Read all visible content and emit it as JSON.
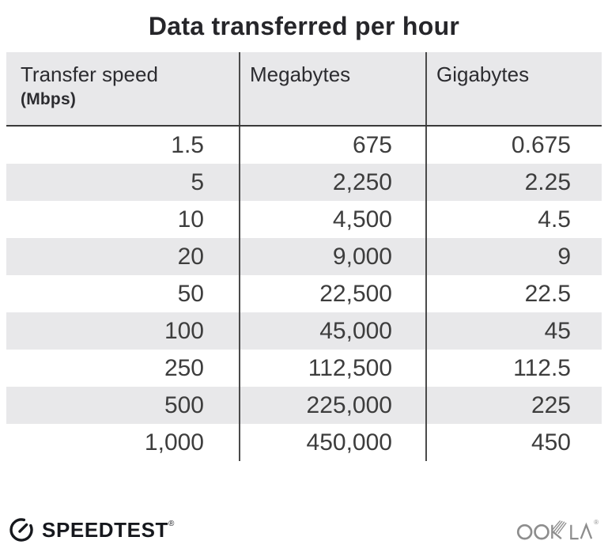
{
  "title": "Data transferred per hour",
  "table": {
    "columns": [
      {
        "label": "Transfer speed",
        "sublabel": "(Mbps)"
      },
      {
        "label": "Megabytes"
      },
      {
        "label": "Gigabytes"
      }
    ],
    "rows": [
      {
        "speed": "1.5",
        "megabytes": "675",
        "gigabytes": "0.675"
      },
      {
        "speed": "5",
        "megabytes": "2,250",
        "gigabytes": "2.25"
      },
      {
        "speed": "10",
        "megabytes": "4,500",
        "gigabytes": "4.5"
      },
      {
        "speed": "20",
        "megabytes": "9,000",
        "gigabytes": "9"
      },
      {
        "speed": "50",
        "megabytes": "22,500",
        "gigabytes": "22.5"
      },
      {
        "speed": "100",
        "megabytes": "45,000",
        "gigabytes": "45"
      },
      {
        "speed": "250",
        "megabytes": "112,500",
        "gigabytes": "112.5"
      },
      {
        "speed": "500",
        "megabytes": "225,000",
        "gigabytes": "225"
      },
      {
        "speed": "1,000",
        "megabytes": "450,000",
        "gigabytes": "450"
      }
    ]
  },
  "footer": {
    "speedtest_label": "SPEEDTEST",
    "speedtest_trademark": "®",
    "ookla_label": "OOKLA",
    "ookla_trademark": "®"
  },
  "icons": {
    "speedtest_gauge": "gauge-icon",
    "ookla_wordmark": "ookla-wordmark"
  },
  "colors": {
    "stripe_and_header_bg": "#e8e8ea",
    "column_divider": "#4a4a4a",
    "header_bottom_border": "#3a3a3a",
    "title_text": "#26262a",
    "header_text": "#2c2c30",
    "body_text": "#3d3d3d",
    "speedtest_black": "#16181d",
    "ookla_gray": "#8d8d8d"
  },
  "chart_data": {
    "type": "table",
    "title": "Data transferred per hour",
    "columns": [
      "Transfer speed (Mbps)",
      "Megabytes",
      "Gigabytes"
    ],
    "rows": [
      [
        1.5,
        675,
        0.675
      ],
      [
        5,
        2250,
        2.25
      ],
      [
        10,
        4500,
        4.5
      ],
      [
        20,
        9000,
        9
      ],
      [
        50,
        22500,
        22.5
      ],
      [
        100,
        45000,
        45
      ],
      [
        250,
        112500,
        112.5
      ],
      [
        500,
        225000,
        225
      ],
      [
        1000,
        450000,
        450
      ]
    ],
    "layout_hints": {
      "striped_rows": true,
      "stripe_start": "second data row",
      "numbers_right_aligned": true,
      "column_dividers": true
    }
  }
}
